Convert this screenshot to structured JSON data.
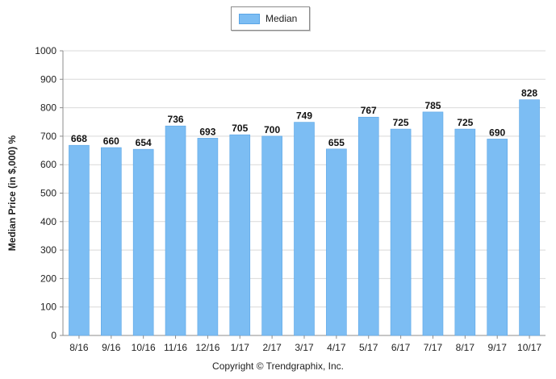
{
  "chart_data": {
    "type": "bar",
    "categories": [
      "8/16",
      "9/16",
      "10/16",
      "11/16",
      "12/16",
      "1/17",
      "2/17",
      "3/17",
      "4/17",
      "5/17",
      "6/17",
      "7/17",
      "8/17",
      "9/17",
      "10/17"
    ],
    "series": [
      {
        "name": "Median",
        "values": [
          668,
          660,
          654,
          736,
          693,
          705,
          700,
          749,
          655,
          767,
          725,
          785,
          725,
          690,
          828
        ]
      }
    ],
    "title": "",
    "xlabel": "",
    "ylabel": "Median Price (in $,000) %",
    "ylim": [
      0,
      1000
    ],
    "yticks": [
      0,
      100,
      200,
      300,
      400,
      500,
      600,
      700,
      800,
      900,
      1000
    ],
    "grid": true,
    "legend": "top-center",
    "colors": {
      "bar": "#7cbdf3",
      "bar_edge": "#5aa5e6",
      "grid": "#d9d9d9",
      "axis": "#8c8c8c"
    }
  },
  "footer": {
    "copyright": "Copyright © Trendgraphix, Inc."
  }
}
